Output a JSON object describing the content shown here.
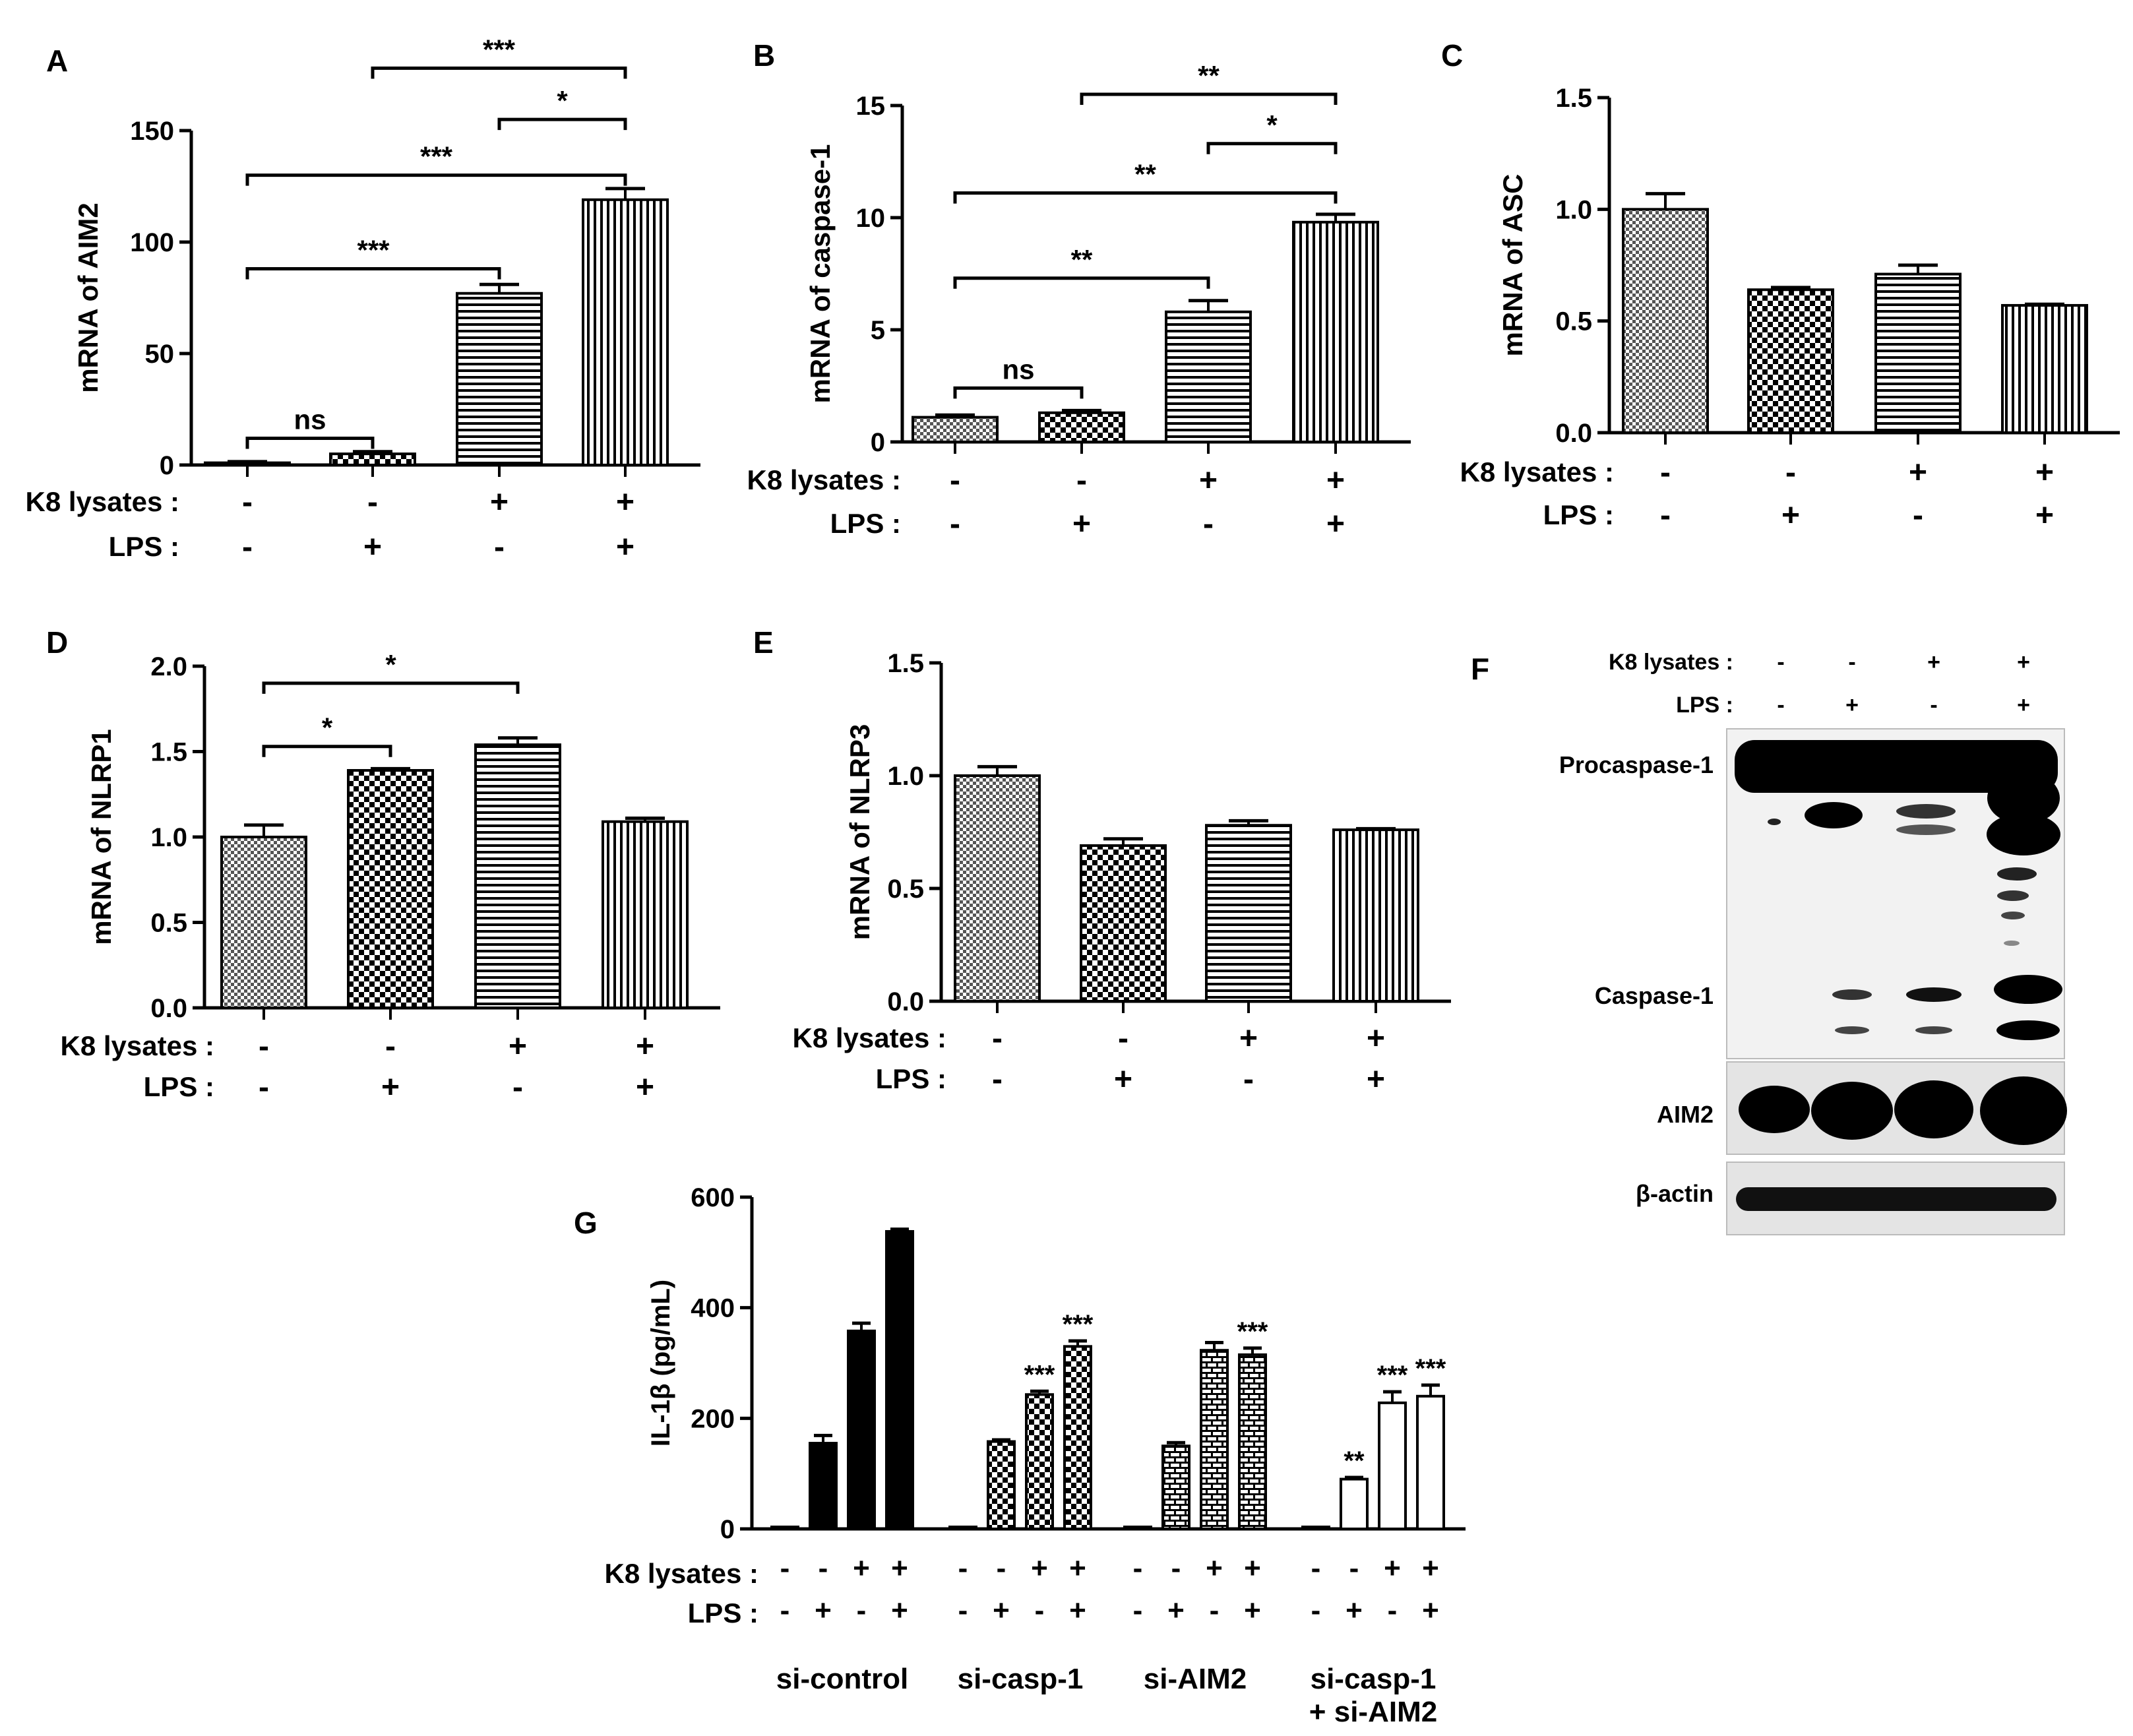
{
  "chart_data": [
    {
      "panel": "A",
      "type": "bar",
      "ylabel": "mRNA of AIM2",
      "ylim": [
        0,
        150
      ],
      "yticks": [
        0,
        50,
        100,
        150
      ],
      "values": [
        1,
        5,
        77,
        119
      ],
      "errors": [
        0.5,
        1,
        4,
        5
      ],
      "patterns": [
        "dots",
        "checker",
        "hlines",
        "vlines"
      ],
      "rows": [
        {
          "label": "K8 lysates :",
          "signs": [
            "-",
            "-",
            "+",
            "+"
          ]
        },
        {
          "label": "LPS :",
          "signs": [
            "-",
            "+",
            "-",
            "+"
          ]
        }
      ],
      "annotations": [
        {
          "from": 1,
          "to": 2,
          "y": 12,
          "text": "ns"
        },
        {
          "from": 1,
          "to": 3,
          "y": 88,
          "text": "***"
        },
        {
          "from": 1,
          "to": 4,
          "y": 130,
          "text": "***"
        },
        {
          "from": 3,
          "to": 4,
          "y": 155,
          "text": "*"
        },
        {
          "from": 2,
          "to": 4,
          "y": 178,
          "text": "***"
        }
      ]
    },
    {
      "panel": "B",
      "type": "bar",
      "ylabel": "mRNA of caspase-1",
      "ylim": [
        0,
        15
      ],
      "yticks": [
        0,
        5,
        10,
        15
      ],
      "values": [
        1.1,
        1.3,
        5.8,
        9.8
      ],
      "errors": [
        0.1,
        0.1,
        0.5,
        0.35
      ],
      "patterns": [
        "dots",
        "checker",
        "hlines",
        "vlines"
      ],
      "rows": [
        {
          "label": "K8 lysates :",
          "signs": [
            "-",
            "-",
            "+",
            "+"
          ]
        },
        {
          "label": "LPS :",
          "signs": [
            "-",
            "+",
            "-",
            "+"
          ]
        }
      ],
      "annotations": [
        {
          "from": 1,
          "to": 2,
          "y": 2.4,
          "text": "ns"
        },
        {
          "from": 1,
          "to": 3,
          "y": 7.3,
          "text": "**"
        },
        {
          "from": 1,
          "to": 4,
          "y": 11.1,
          "text": "**"
        },
        {
          "from": 3,
          "to": 4,
          "y": 13.3,
          "text": "*"
        },
        {
          "from": 2,
          "to": 4,
          "y": 15.5,
          "text": "**"
        }
      ]
    },
    {
      "panel": "C",
      "type": "bar",
      "ylabel": "mRNA of ASC",
      "ylim": [
        0,
        1.5
      ],
      "yticks": [
        "0.0",
        "0.5",
        "1.0",
        "1.5"
      ],
      "values": [
        1.0,
        0.64,
        0.71,
        0.57
      ],
      "errors": [
        0.07,
        0.01,
        0.04,
        0.005
      ],
      "patterns": [
        "dots",
        "checker",
        "hlines",
        "vlines"
      ],
      "rows": [
        {
          "label": "K8 lysates :",
          "signs": [
            "-",
            "-",
            "+",
            "+"
          ]
        },
        {
          "label": "LPS :",
          "signs": [
            "-",
            "+",
            "-",
            "+"
          ]
        }
      ],
      "annotations": []
    },
    {
      "panel": "D",
      "type": "bar",
      "ylabel": "mRNA of NLRP1",
      "ylim": [
        0,
        2.0
      ],
      "yticks": [
        "0.0",
        "0.5",
        "1.0",
        "1.5",
        "2.0"
      ],
      "values": [
        1.0,
        1.39,
        1.54,
        1.09
      ],
      "errors": [
        0.07,
        0.01,
        0.04,
        0.02
      ],
      "patterns": [
        "dots",
        "checker",
        "hlines",
        "vlines"
      ],
      "rows": [
        {
          "label": "K8 lysates :",
          "signs": [
            "-",
            "-",
            "+",
            "+"
          ]
        },
        {
          "label": "LPS :",
          "signs": [
            "-",
            "+",
            "-",
            "+"
          ]
        }
      ],
      "annotations": [
        {
          "from": 1,
          "to": 2,
          "y": 1.53,
          "text": "*"
        },
        {
          "from": 1,
          "to": 3,
          "y": 1.9,
          "text": "*"
        }
      ]
    },
    {
      "panel": "E",
      "type": "bar",
      "ylabel": "mRNA of NLRP3",
      "ylim": [
        0,
        1.5
      ],
      "yticks": [
        "0.0",
        "0.5",
        "1.0",
        "1.5"
      ],
      "values": [
        1.0,
        0.69,
        0.78,
        0.76
      ],
      "errors": [
        0.04,
        0.03,
        0.02,
        0.005
      ],
      "patterns": [
        "dots",
        "checker",
        "hlines",
        "vlines"
      ],
      "rows": [
        {
          "label": "K8 lysates :",
          "signs": [
            "-",
            "-",
            "+",
            "+"
          ]
        },
        {
          "label": "LPS :",
          "signs": [
            "-",
            "+",
            "-",
            "+"
          ]
        }
      ],
      "annotations": []
    },
    {
      "panel": "G",
      "type": "bar",
      "ylabel": "IL-1β  (pg/mL)",
      "ylim": [
        0,
        600
      ],
      "yticks": [
        0,
        200,
        400,
        600
      ],
      "groups": [
        {
          "name": "si-control",
          "values": [
            2,
            155,
            358,
            538
          ],
          "errors": [
            0,
            14,
            14,
            4
          ],
          "sig": [
            "",
            "",
            "",
            ""
          ],
          "pattern": "solid"
        },
        {
          "name": "si-casp-1",
          "values": [
            2,
            158,
            243,
            330
          ],
          "errors": [
            0,
            3,
            6,
            10
          ],
          "sig": [
            "",
            "",
            "***",
            "***"
          ],
          "pattern": "checker"
        },
        {
          "name": "si-AIM2",
          "values": [
            2,
            150,
            323,
            315
          ],
          "errors": [
            0,
            6,
            14,
            12
          ],
          "sig": [
            "",
            "",
            "",
            "***"
          ],
          "pattern": "brick"
        },
        {
          "name": "si-casp-1\n+ si-AIM2",
          "values": [
            2,
            90,
            228,
            240
          ],
          "errors": [
            0,
            3,
            20,
            20
          ],
          "sig": [
            "",
            "**",
            "***",
            "***"
          ],
          "pattern": "white"
        }
      ],
      "rows": [
        {
          "label": "K8 lysates :",
          "signs": [
            "-",
            "-",
            "+",
            "+"
          ]
        },
        {
          "label": "LPS :",
          "signs": [
            "-",
            "+",
            "-",
            "+"
          ]
        }
      ]
    }
  ],
  "western_blot": {
    "panel": "F",
    "rows": [
      {
        "label": "K8 lysates :",
        "signs": [
          "-",
          "-",
          "+",
          "+"
        ]
      },
      {
        "label": "LPS :",
        "signs": [
          "-",
          "+",
          "-",
          "+"
        ]
      }
    ],
    "bands": [
      "Procaspase-1",
      "Caspase-1",
      "AIM2",
      "β-actin"
    ]
  }
}
